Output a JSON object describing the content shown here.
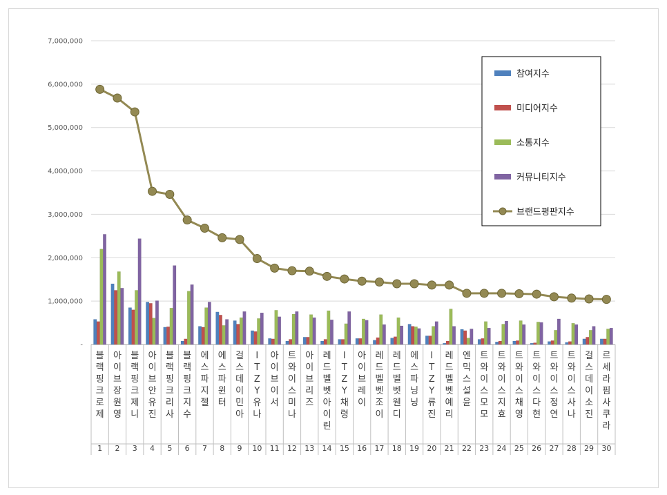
{
  "chart_data": {
    "type": "bar",
    "title": "",
    "xlabel": "",
    "ylabel": "",
    "ylim": [
      0,
      7000000
    ],
    "yticks": [
      "-",
      "1,000,000",
      "2,000,000",
      "3,000,000",
      "4,000,000",
      "5,000,000",
      "6,000,000",
      "7,000,000"
    ],
    "grid": true,
    "legend_position": "top-right",
    "ranks": [
      "1",
      "2",
      "3",
      "4",
      "5",
      "6",
      "7",
      "8",
      "9",
      "10",
      "11",
      "12",
      "13",
      "14",
      "15",
      "16",
      "17",
      "18",
      "19",
      "20",
      "21",
      "22",
      "23",
      "24",
      "25",
      "26",
      "27",
      "28",
      "29",
      "30"
    ],
    "categories": [
      "블랙핑크로제",
      "아이브장원영",
      "블랙핑크제니",
      "아이브안유진",
      "블랙핑크리사",
      "블랙핑크지수",
      "에스파지젤",
      "에스파윈터",
      "걸스데이민아",
      "ITZY유나",
      "아이브이서",
      "트와이스미나",
      "아이브리즈",
      "레드벨벳아이린",
      "ITZY채령",
      "아이브레이",
      "레드벨벳조이",
      "레드벨벳웬디",
      "에스파닝닝",
      "ITZY류진",
      "레드벨벳예리",
      "엔믹스설윤",
      "트와이스모모",
      "트와이스지효",
      "트와이스채영",
      "트와이스다현",
      "트와이스정연",
      "트와이스사나",
      "걸스데이소진",
      "르세라핌사쿠라"
    ],
    "series": [
      {
        "name": "참여지수",
        "type": "bar",
        "color": "#4f81bd",
        "values": [
          580000,
          1400000,
          850000,
          980000,
          400000,
          80000,
          420000,
          750000,
          550000,
          320000,
          140000,
          80000,
          170000,
          80000,
          120000,
          140000,
          100000,
          150000,
          470000,
          200000,
          30000,
          350000,
          120000,
          60000,
          80000,
          30000,
          70000,
          50000,
          130000,
          130000
        ]
      },
      {
        "name": "미디어지수",
        "type": "bar",
        "color": "#c0504d",
        "values": [
          530000,
          1250000,
          800000,
          950000,
          410000,
          130000,
          400000,
          680000,
          470000,
          300000,
          130000,
          120000,
          170000,
          120000,
          120000,
          140000,
          160000,
          180000,
          420000,
          200000,
          80000,
          320000,
          140000,
          80000,
          90000,
          40000,
          90000,
          70000,
          170000,
          130000
        ]
      },
      {
        "name": "소통지수",
        "type": "bar",
        "color": "#9bbb59",
        "values": [
          2200000,
          1680000,
          1250000,
          610000,
          840000,
          1230000,
          850000,
          440000,
          620000,
          600000,
          790000,
          700000,
          690000,
          780000,
          480000,
          590000,
          690000,
          620000,
          410000,
          420000,
          820000,
          150000,
          530000,
          470000,
          550000,
          520000,
          330000,
          490000,
          330000,
          360000
        ]
      },
      {
        "name": "커뮤니티지수",
        "type": "bar",
        "color": "#8064a2",
        "values": [
          2540000,
          1300000,
          2440000,
          1010000,
          1820000,
          1380000,
          980000,
          580000,
          760000,
          730000,
          640000,
          760000,
          620000,
          570000,
          760000,
          560000,
          460000,
          430000,
          370000,
          530000,
          420000,
          360000,
          380000,
          540000,
          460000,
          510000,
          590000,
          460000,
          420000,
          380000
        ]
      },
      {
        "name": "브랜드평판지수",
        "type": "line",
        "color": "#938953",
        "values": [
          5880000,
          5680000,
          5360000,
          3530000,
          3460000,
          2870000,
          2680000,
          2460000,
          2420000,
          1980000,
          1760000,
          1700000,
          1690000,
          1570000,
          1510000,
          1460000,
          1440000,
          1400000,
          1400000,
          1370000,
          1370000,
          1180000,
          1180000,
          1180000,
          1170000,
          1160000,
          1100000,
          1070000,
          1050000,
          1040000
        ]
      }
    ]
  }
}
